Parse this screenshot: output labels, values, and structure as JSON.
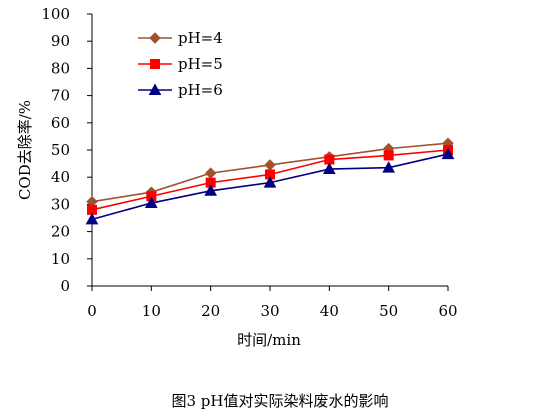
{
  "chart_data": {
    "type": "line",
    "x": [
      0,
      10,
      20,
      30,
      40,
      50,
      60
    ],
    "xlabel": "时间/min",
    "ylabel": "COD去除率/%",
    "xlim": [
      0,
      60
    ],
    "ylim": [
      0,
      100
    ],
    "x_ticks": [
      "0",
      "10",
      "20",
      "30",
      "40",
      "50",
      "60"
    ],
    "y_ticks": [
      "0",
      "10",
      "20",
      "30",
      "40",
      "50",
      "60",
      "70",
      "80",
      "90",
      "100"
    ],
    "grid": false,
    "legend_position": "top-left",
    "series": [
      {
        "name": "pH=4",
        "color": "#a0522d",
        "marker": "diamond",
        "values": [
          31,
          34.5,
          41.5,
          44.5,
          47.5,
          50.5,
          52.5
        ]
      },
      {
        "name": "pH=5",
        "color": "#ff0000",
        "marker": "square",
        "values": [
          28,
          33,
          38,
          41,
          46.5,
          48,
          50
        ]
      },
      {
        "name": "pH=6",
        "color": "#000080",
        "marker": "triangle",
        "values": [
          24.5,
          30.5,
          35,
          38,
          43,
          43.5,
          48.5
        ]
      }
    ]
  },
  "caption": "图3   pH值对实际染料废水的影响"
}
